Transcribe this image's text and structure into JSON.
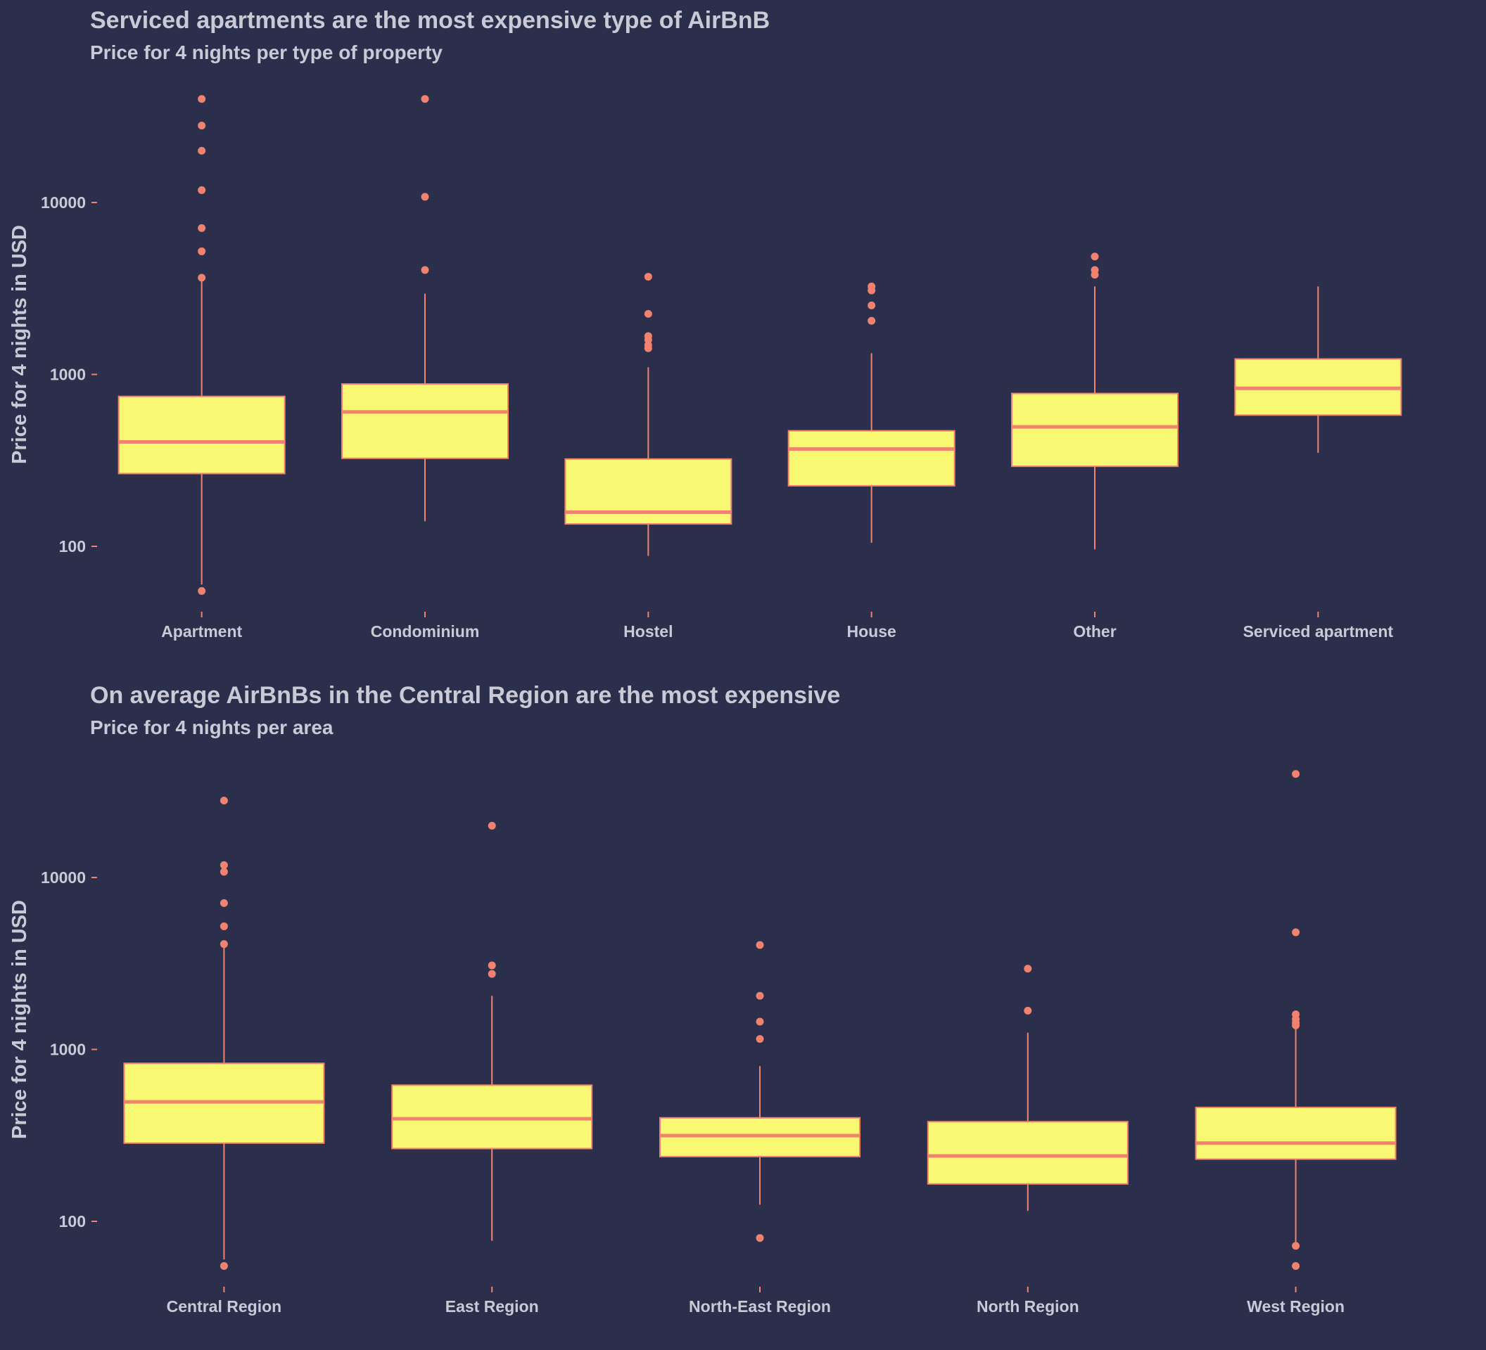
{
  "colors": {
    "background": "#2b2f4b",
    "text": "#c9cad6",
    "box_fill": "#f8f872",
    "accent": "#f0826f"
  },
  "chart_data": [
    {
      "type": "box",
      "title": "Serviced apartments are the most expensive type of AirBnB",
      "subtitle": "Price for 4 nights per type of property",
      "xlabel": "",
      "ylabel": "Price for 4 nights in USD",
      "y_scale": "log",
      "ylim": [
        42,
        45000
      ],
      "y_ticks": [
        100,
        1000,
        10000
      ],
      "y_tick_labels": [
        "100",
        "1000",
        "10000"
      ],
      "grid": false,
      "categories": [
        "Apartment",
        "Condominium",
        "Hostel",
        "House",
        "Other",
        "Serviced apartment"
      ],
      "boxes": [
        {
          "q1": 265,
          "median": 405,
          "q3": 745,
          "whisker_low": 60,
          "whisker_high": 3600,
          "outliers": [
            55,
            3650,
            5200,
            7100,
            11800,
            20000,
            28000,
            40000
          ]
        },
        {
          "q1": 325,
          "median": 605,
          "q3": 880,
          "whisker_low": 140,
          "whisker_high": 2950,
          "outliers": [
            4050,
            10800,
            40000
          ]
        },
        {
          "q1": 135,
          "median": 158,
          "q3": 322,
          "whisker_low": 88,
          "whisker_high": 1100,
          "outliers": [
            1420,
            1480,
            1590,
            1670,
            2250,
            3700
          ]
        },
        {
          "q1": 225,
          "median": 368,
          "q3": 470,
          "whisker_low": 105,
          "whisker_high": 1330,
          "outliers": [
            2050,
            2520,
            3080,
            3250
          ]
        },
        {
          "q1": 292,
          "median": 495,
          "q3": 775,
          "whisker_low": 96,
          "whisker_high": 3250,
          "outliers": [
            3800,
            4050,
            4850
          ]
        },
        {
          "q1": 580,
          "median": 830,
          "q3": 1230,
          "whisker_low": 350,
          "whisker_high": 3250,
          "outliers": []
        }
      ]
    },
    {
      "type": "box",
      "title": "On average AirBnBs in the Central Region are the most expensive",
      "subtitle": "Price for 4 nights per area",
      "xlabel": "",
      "ylabel": "Price for 4 nights in USD",
      "y_scale": "log",
      "ylim": [
        42,
        45000
      ],
      "y_ticks": [
        100,
        1000,
        10000
      ],
      "y_tick_labels": [
        "100",
        "1000",
        "10000"
      ],
      "grid": false,
      "categories": [
        "Central Region",
        "East Region",
        "North-East Region",
        "North Region",
        "West Region"
      ],
      "boxes": [
        {
          "q1": 285,
          "median": 495,
          "q3": 830,
          "whisker_low": 60,
          "whisker_high": 4050,
          "outliers": [
            55,
            4100,
            5200,
            7100,
            10800,
            11800,
            28000
          ]
        },
        {
          "q1": 265,
          "median": 395,
          "q3": 620,
          "whisker_low": 77,
          "whisker_high": 2050,
          "outliers": [
            2750,
            3080,
            20000
          ]
        },
        {
          "q1": 238,
          "median": 315,
          "q3": 400,
          "whisker_low": 125,
          "whisker_high": 800,
          "outliers": [
            80,
            1150,
            1450,
            2050,
            4050
          ]
        },
        {
          "q1": 165,
          "median": 240,
          "q3": 380,
          "whisker_low": 115,
          "whisker_high": 1250,
          "outliers": [
            1680,
            2950
          ]
        },
        {
          "q1": 230,
          "median": 285,
          "q3": 460,
          "whisker_low": 73,
          "whisker_high": 1350,
          "outliers": [
            55,
            72,
            1380,
            1430,
            1500,
            1600,
            4800,
            40000
          ]
        }
      ]
    }
  ]
}
